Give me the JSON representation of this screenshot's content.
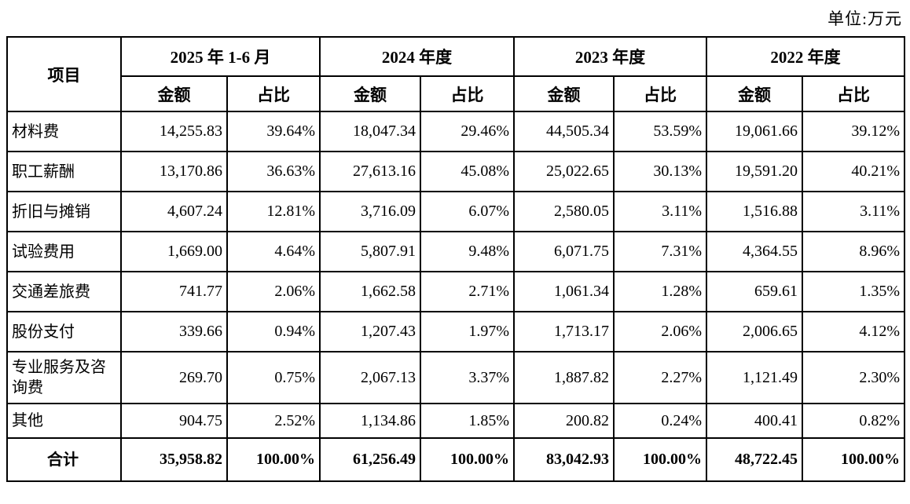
{
  "page": {
    "unit_label": "单位:万元"
  },
  "table": {
    "item_header": "项目",
    "column_groups": [
      {
        "label": "2025 年 1-6 月"
      },
      {
        "label": "2024 年度"
      },
      {
        "label": "2023 年度"
      },
      {
        "label": "2022 年度"
      }
    ],
    "sub_headers": {
      "amount": "金额",
      "ratio": "占比"
    },
    "rows": [
      {
        "label": "材料费",
        "values": [
          "14,255.83",
          "39.64%",
          "18,047.34",
          "29.46%",
          "44,505.34",
          "53.59%",
          "19,061.66",
          "39.12%"
        ]
      },
      {
        "label": "职工薪酬",
        "values": [
          "13,170.86",
          "36.63%",
          "27,613.16",
          "45.08%",
          "25,022.65",
          "30.13%",
          "19,591.20",
          "40.21%"
        ]
      },
      {
        "label": "折旧与摊销",
        "values": [
          "4,607.24",
          "12.81%",
          "3,716.09",
          "6.07%",
          "2,580.05",
          "3.11%",
          "1,516.88",
          "3.11%"
        ]
      },
      {
        "label": "试验费用",
        "values": [
          "1,669.00",
          "4.64%",
          "5,807.91",
          "9.48%",
          "6,071.75",
          "7.31%",
          "4,364.55",
          "8.96%"
        ]
      },
      {
        "label": "交通差旅费",
        "values": [
          "741.77",
          "2.06%",
          "1,662.58",
          "2.71%",
          "1,061.34",
          "1.28%",
          "659.61",
          "1.35%"
        ]
      },
      {
        "label": "股份支付",
        "values": [
          "339.66",
          "0.94%",
          "1,207.43",
          "1.97%",
          "1,713.17",
          "2.06%",
          "2,006.65",
          "4.12%"
        ]
      },
      {
        "label": "专业服务及咨询费",
        "values": [
          "269.70",
          "0.75%",
          "2,067.13",
          "3.37%",
          "1,887.82",
          "2.27%",
          "1,121.49",
          "2.30%"
        ]
      },
      {
        "label": "其他",
        "values": [
          "904.75",
          "2.52%",
          "1,134.86",
          "1.85%",
          "200.82",
          "0.24%",
          "400.41",
          "0.82%"
        ]
      }
    ],
    "total_row": {
      "label": "合计",
      "values": [
        "35,958.82",
        "100.00%",
        "61,256.49",
        "100.00%",
        "83,042.93",
        "100.00%",
        "48,722.45",
        "100.00%"
      ]
    }
  }
}
